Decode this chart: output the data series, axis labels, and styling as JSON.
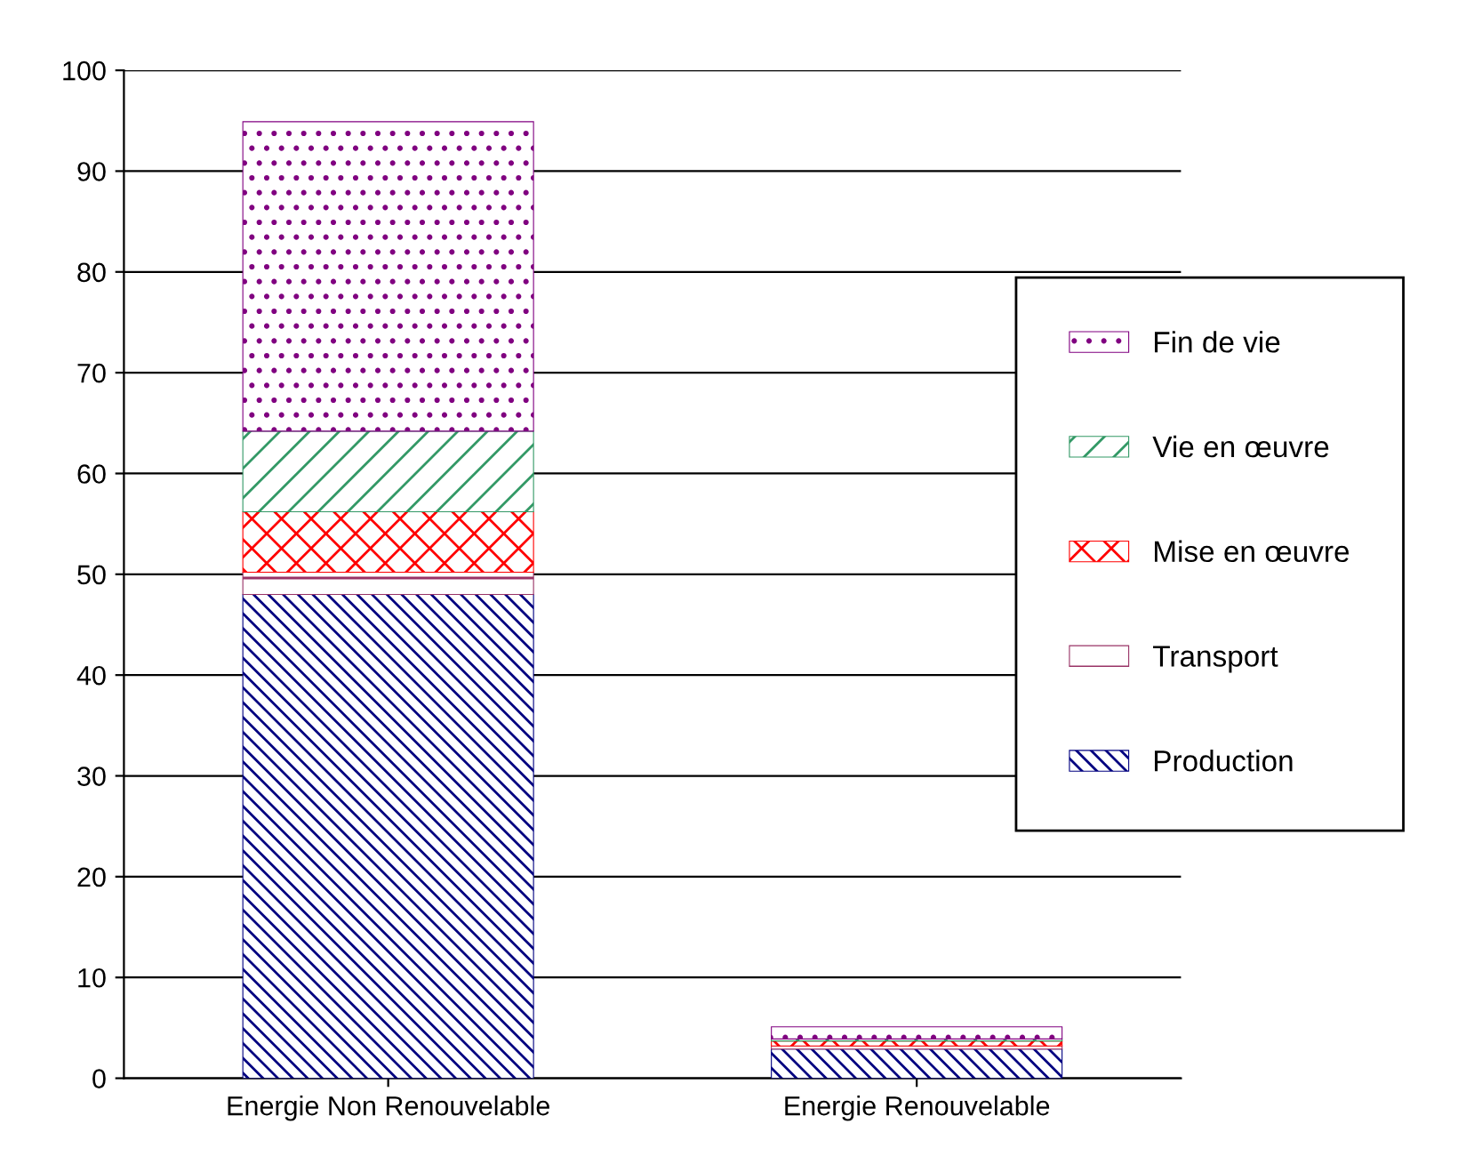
{
  "chart_data": {
    "type": "bar",
    "stacked": true,
    "categories": [
      "Energie Non Renouvelable",
      "Energie Renouvelable"
    ],
    "series": [
      {
        "name": "Production",
        "color": "#000080",
        "values": [
          48,
          2.9
        ]
      },
      {
        "name": "Transport",
        "color": "#993366",
        "values": [
          2.2,
          0.3
        ]
      },
      {
        "name": "Mise en œuvre",
        "color": "#ff0000",
        "values": [
          6,
          0.5
        ]
      },
      {
        "name": "Vie en œuvre",
        "color": "#339966",
        "values": [
          8,
          0.2
        ]
      },
      {
        "name": "Fin de vie",
        "color": "#800080",
        "values": [
          30.7,
          1.2
        ]
      }
    ],
    "ylim": [
      0,
      100
    ],
    "yticks": [
      0,
      10,
      20,
      30,
      40,
      50,
      60,
      70,
      80,
      90,
      100
    ],
    "grid": "y",
    "legend": "right"
  }
}
